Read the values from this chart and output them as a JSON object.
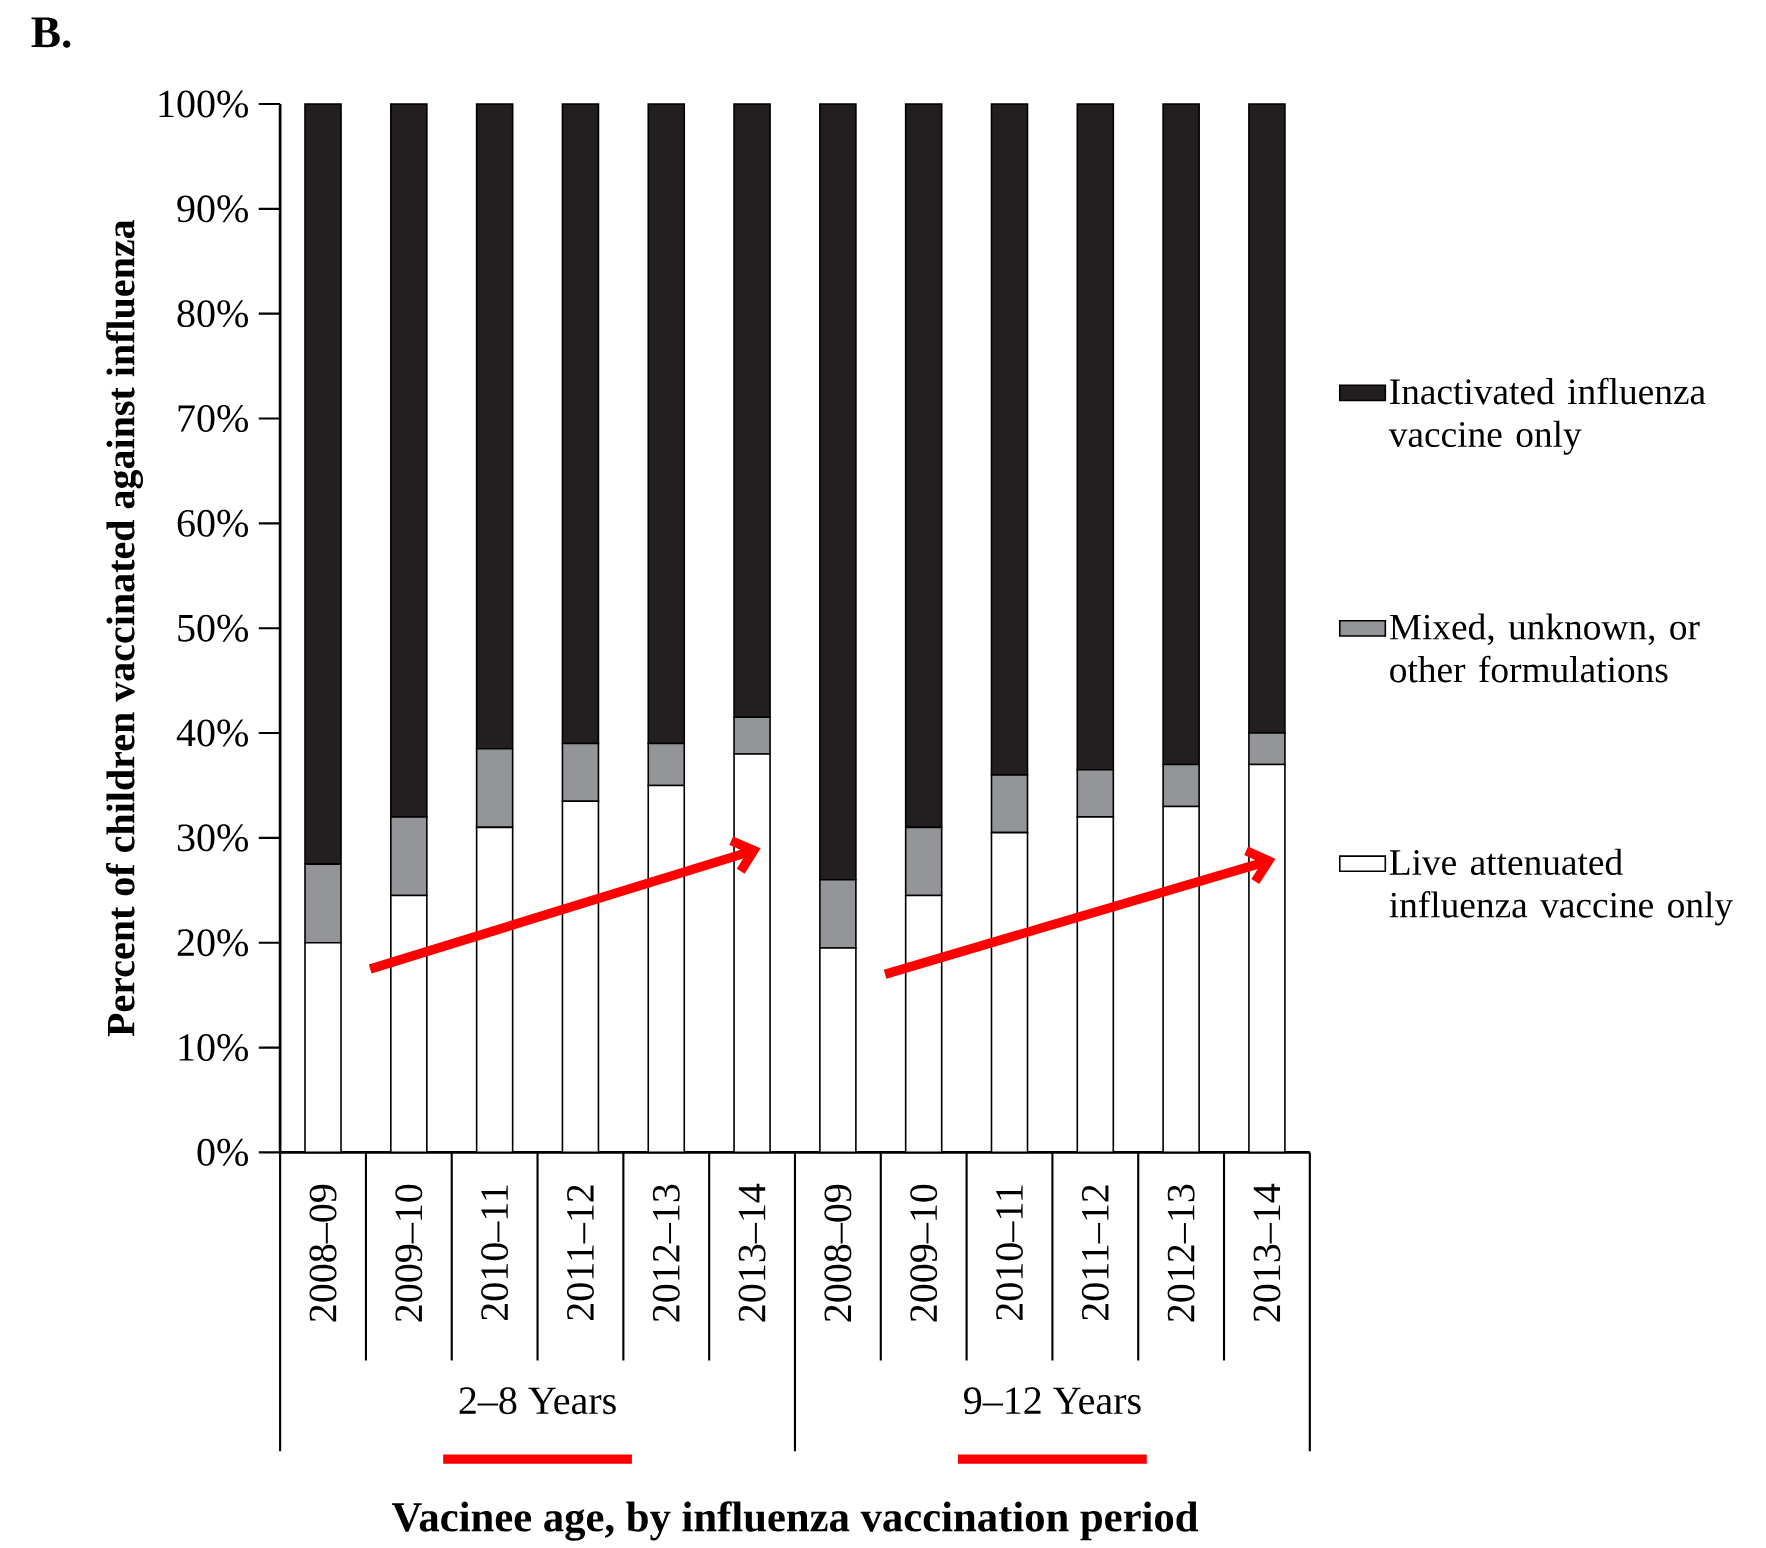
{
  "chart_data": {
    "type": "bar",
    "stacked": true,
    "title": "B.",
    "xlabel": "Vacinee age, by influenza vaccination period",
    "ylabel": "Percent of children vaccinated against influenza",
    "categories": [
      "2008–09",
      "2009–10",
      "2010–11",
      "2011–12",
      "2012–13",
      "2013–14",
      "2008–09",
      "2009–10",
      "2010–11",
      "2011–12",
      "2012–13",
      "2013–14"
    ],
    "series": [
      {
        "name": "Live attenuated influenza vaccine only",
        "color": "#ffffff",
        "values": [
          20,
          24.5,
          31,
          33.5,
          35,
          38,
          19.5,
          24.5,
          30.5,
          32,
          33,
          37
        ]
      },
      {
        "name": "Mixed, unknown, or other formulations",
        "color": "#939598",
        "values": [
          7.5,
          7.5,
          7.5,
          5.5,
          4,
          3.5,
          6.5,
          6.5,
          5.5,
          4.5,
          4,
          3
        ]
      },
      {
        "name": "Inactivated influenza vaccine only",
        "color": "#231f20",
        "values": [
          72.5,
          68,
          61.5,
          61,
          61,
          58.5,
          74,
          69,
          64,
          63.5,
          63,
          60
        ]
      }
    ],
    "annotations": [
      "2–8 Years",
      "9–12 Years"
    ],
    "ylim": [
      0,
      100
    ],
    "yticks": [
      {
        "value": 0,
        "label": "0%"
      },
      {
        "value": 10,
        "label": "10%"
      },
      {
        "value": 20,
        "label": "20%"
      },
      {
        "value": 30,
        "label": "30%"
      },
      {
        "value": 40,
        "label": "40%"
      },
      {
        "value": 50,
        "label": "50%"
      },
      {
        "value": 60,
        "label": "60%"
      },
      {
        "value": 70,
        "label": "70%"
      },
      {
        "value": 80,
        "label": "80%"
      },
      {
        "value": 90,
        "label": "90%"
      },
      {
        "value": 100,
        "label": "100%"
      }
    ],
    "grid": false,
    "legend": "right"
  }
}
